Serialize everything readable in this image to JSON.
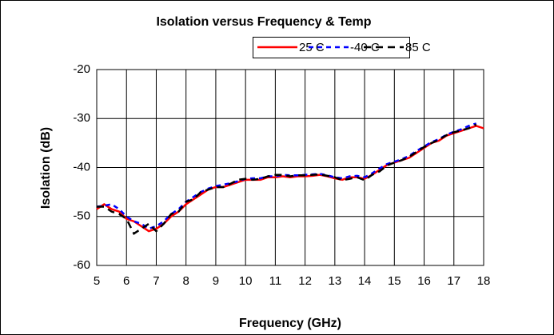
{
  "chart_data": {
    "type": "line",
    "title": "Isolation versus Frequency & Temp",
    "xlabel": "Frequency (GHz)",
    "ylabel": "Isolation (dB)",
    "x": [
      5,
      5.25,
      5.5,
      5.75,
      6,
      6.25,
      6.5,
      6.75,
      7,
      7.25,
      7.5,
      7.75,
      8,
      8.25,
      8.5,
      8.75,
      9,
      9.25,
      9.5,
      9.75,
      10,
      10.25,
      10.5,
      10.75,
      11,
      11.25,
      11.5,
      11.75,
      12,
      12.25,
      12.5,
      12.75,
      13,
      13.25,
      13.5,
      13.75,
      14,
      14.25,
      14.5,
      14.75,
      15,
      15.25,
      15.5,
      15.75,
      16,
      16.25,
      16.5,
      16.75,
      17,
      17.25,
      17.5,
      17.75,
      18
    ],
    "series": [
      {
        "name": "25 C",
        "color": "#ff0000",
        "dash": "none",
        "values": [
          -48.5,
          -47.5,
          -48.5,
          -49,
          -50.5,
          -51,
          -52,
          -53,
          -52.5,
          -51.5,
          -50,
          -49,
          -47.5,
          -46.5,
          -45.5,
          -44.5,
          -44,
          -44,
          -43.5,
          -43,
          -42.5,
          -42.5,
          -42.5,
          -42,
          -42,
          -41.8,
          -42,
          -41.8,
          -41.8,
          -41.7,
          -41.5,
          -41.8,
          -42.2,
          -42.5,
          -42,
          -42,
          -42.3,
          -41.5,
          -40.5,
          -39.5,
          -39,
          -38.5,
          -38,
          -37,
          -36,
          -35,
          -34.5,
          -33.5,
          -33,
          -32.5,
          -32,
          -31.5,
          -32
        ]
      },
      {
        "name": "-40 C",
        "color": "#0000ff",
        "dash": "6 5",
        "values": [
          -48,
          -47.8,
          -47.5,
          -48.5,
          -50,
          -51,
          -51.5,
          -52.5,
          -52,
          -51,
          -49.5,
          -48.5,
          -47,
          -46,
          -45,
          -44.3,
          -43.8,
          -43.5,
          -43.2,
          -42.8,
          -42.3,
          -42.2,
          -42.2,
          -41.8,
          -41.8,
          -41.5,
          -41.6,
          -41.6,
          -41.5,
          -41.4,
          -41.3,
          -41.6,
          -42,
          -42.2,
          -41.8,
          -41.7,
          -42,
          -41.2,
          -40.2,
          -39.3,
          -38.8,
          -38.3,
          -37.6,
          -36.6,
          -35.7,
          -34.8,
          -34.2,
          -33.3,
          -32.7,
          -32.2,
          -31.5,
          -31,
          null
        ]
      },
      {
        "name": "85 C",
        "color": "#000000",
        "dash": "9 6",
        "values": [
          -48,
          -48,
          -49,
          -49.5,
          -50.5,
          -53.5,
          -52.5,
          -51.5,
          -53,
          -51.5,
          -49.5,
          -49,
          -47,
          -46.5,
          -45,
          -44.5,
          -44,
          -44,
          -43.3,
          -42.5,
          -42.3,
          -42.5,
          -42.3,
          -41.8,
          -41.5,
          -41.5,
          -41.8,
          -41.6,
          -41.6,
          -41.5,
          -41.4,
          -41.7,
          -42,
          -42.6,
          -42.3,
          -42,
          -42.6,
          -41.5,
          -40.8,
          -39.6,
          -39,
          -38.5,
          -37.8,
          -36.8,
          -35.8,
          -35,
          -34.3,
          -33.4,
          -32.8,
          -32.4,
          -32,
          -31.2,
          null
        ]
      }
    ],
    "xlim": [
      5,
      18
    ],
    "xticks": [
      5,
      6,
      7,
      8,
      9,
      10,
      11,
      12,
      13,
      14,
      15,
      16,
      17,
      18
    ],
    "ylim": [
      -60,
      -20
    ],
    "yticks": [
      -60,
      -50,
      -40,
      -30,
      -20
    ],
    "grid": true
  }
}
